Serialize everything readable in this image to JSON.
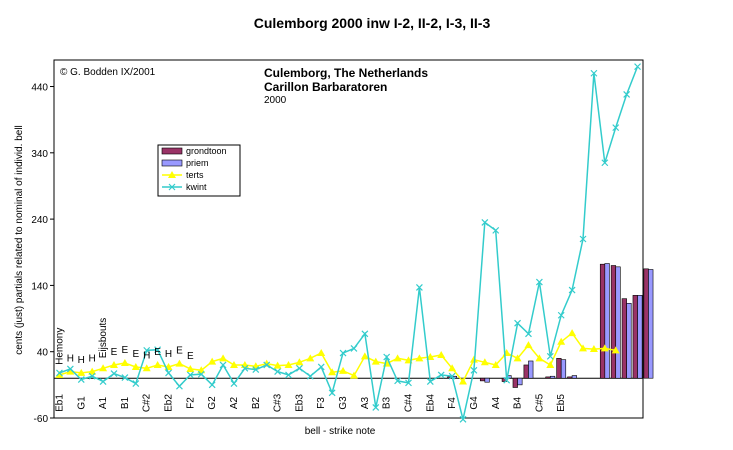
{
  "chart_data": {
    "type": "line",
    "title": "Culemborg 2000 inw I-2, II-2, I-3, II-3",
    "credit": "© G. Bodden IX/2001",
    "subtitle_lines": [
      "Culemborg, The Netherlands",
      "Carillon Barbaratoren",
      "2000"
    ],
    "xlabel": "bell - strike note",
    "ylabel": "cents (just) partials related to nominal of individ. bell",
    "ylim": [
      -60,
      480
    ],
    "yticks": [
      -60,
      40,
      140,
      240,
      340,
      440
    ],
    "x_tick_labels": [
      "Eb1",
      "G1",
      "A1",
      "B1",
      "C#2",
      "Eb2",
      "F2",
      "G2",
      "A2",
      "B2",
      "C#3",
      "Eb3",
      "F3",
      "G3",
      "A3",
      "B3",
      "C#4",
      "Eb4",
      "F4",
      "G4",
      "A4",
      "B4",
      "C#5",
      "Eb5"
    ],
    "founder_annotations": [
      {
        "text": "Hemony",
        "bell": 0
      },
      {
        "text": "H",
        "bell": 1
      },
      {
        "text": "H",
        "bell": 2
      },
      {
        "text": "H",
        "bell": 3
      },
      {
        "text": "Eijsbouts",
        "bell": 4
      },
      {
        "text": "E",
        "bell": 5
      },
      {
        "text": "E",
        "bell": 6
      },
      {
        "text": "E",
        "bell": 7
      },
      {
        "text": "H",
        "bell": 8
      },
      {
        "text": "E",
        "bell": 9
      },
      {
        "text": "H",
        "bell": 10
      },
      {
        "text": "E",
        "bell": 11
      },
      {
        "text": "E",
        "bell": 12
      }
    ],
    "series": [
      {
        "name": "grondtoon",
        "type": "bar",
        "color": "#993366",
        "values": [
          0,
          0,
          0,
          0,
          0,
          0,
          0,
          0,
          0,
          0,
          0,
          0,
          0,
          0,
          0,
          0,
          0,
          0,
          0,
          0,
          0,
          0,
          0,
          0,
          0,
          0,
          0,
          0,
          0,
          0,
          0,
          0,
          0,
          0,
          0,
          0,
          2,
          0,
          0,
          -4,
          0,
          -5,
          -14,
          20,
          0,
          2,
          30,
          2,
          0,
          0,
          172,
          170,
          120,
          125,
          165
        ]
      },
      {
        "name": "priem",
        "type": "bar",
        "color": "#9999ff",
        "values": [
          0,
          0,
          0,
          0,
          0,
          0,
          0,
          0,
          0,
          0,
          0,
          0,
          0,
          0,
          0,
          0,
          0,
          0,
          0,
          0,
          0,
          0,
          0,
          0,
          0,
          0,
          0,
          0,
          0,
          0,
          0,
          0,
          0,
          0,
          0,
          0,
          3,
          0,
          0,
          -6,
          0,
          4,
          -10,
          26,
          0,
          3,
          28,
          4,
          0,
          0,
          173,
          168,
          113,
          125,
          164
        ]
      },
      {
        "name": "terts",
        "type": "line",
        "color": "#ffff00",
        "values": [
          5,
          10,
          8,
          10,
          15,
          20,
          23,
          17,
          15,
          20,
          17,
          22,
          14,
          12,
          25,
          30,
          20,
          20,
          18,
          22,
          19,
          20,
          24,
          30,
          38,
          9,
          11,
          4,
          33,
          25,
          22,
          30,
          27,
          30,
          32,
          35,
          15,
          -5,
          28,
          24,
          20,
          38,
          30,
          50,
          30,
          20,
          55,
          68,
          45,
          44,
          45,
          42
        ]
      },
      {
        "name": "kwint",
        "type": "line",
        "color": "#33cccc",
        "values": [
          8,
          14,
          -2,
          3,
          -5,
          7,
          1,
          -8,
          42,
          43,
          8,
          -12,
          5,
          6,
          -10,
          20,
          -8,
          15,
          13,
          20,
          10,
          5,
          15,
          3,
          17,
          -22,
          38,
          45,
          67,
          -44,
          32,
          -4,
          -7,
          137,
          -5,
          5,
          3,
          -62,
          12,
          235,
          223,
          -3,
          83,
          67,
          145,
          33,
          95,
          133,
          210,
          460,
          325,
          378,
          428,
          470
        ]
      }
    ],
    "legend_position": "left-center",
    "grid": false
  }
}
